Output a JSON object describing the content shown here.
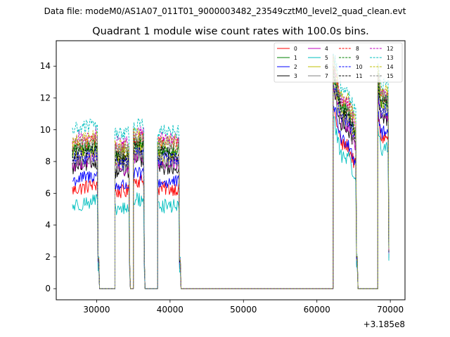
{
  "suptitle": "Data file: modeM0/AS1A07_011T01_9000003482_23549cztM0_level2_quad_clean.evt",
  "chart_data": {
    "type": "line",
    "title": "Quadrant 1 module wise count rates with 100.0s bins.",
    "xlabel": "",
    "ylabel": "",
    "x_offset_label": "+3.185e8",
    "xlim": [
      24500,
      72000
    ],
    "ylim": [
      -0.7,
      15.6
    ],
    "x_ticks": [
      30000,
      40000,
      50000,
      60000,
      70000
    ],
    "x_tick_labels": [
      "30000",
      "40000",
      "50000",
      "60000",
      "70000"
    ],
    "y_ticks": [
      0,
      2,
      4,
      6,
      8,
      10,
      12,
      14
    ],
    "y_tick_labels": [
      "0",
      "2",
      "4",
      "6",
      "8",
      "10",
      "12",
      "14"
    ],
    "legend_position": "top-right",
    "segments": [
      {
        "start": 26700,
        "end": 30300
      },
      {
        "start": 32500,
        "end": 34500
      },
      {
        "start": 35000,
        "end": 36500
      },
      {
        "start": 38300,
        "end": 41400
      },
      {
        "start": 62200,
        "end": 65500
      },
      {
        "start": 68300,
        "end": 69800
      }
    ],
    "series": [
      {
        "name": "0",
        "color": "#ff0000",
        "dash": "solid",
        "levels": [
          6.2,
          6.1,
          6.8,
          6.3,
          9.0,
          9.5
        ]
      },
      {
        "name": "1",
        "color": "#008000",
        "dash": "solid",
        "levels": [
          8.6,
          8.4,
          9.1,
          8.7,
          11.3,
          11.8
        ]
      },
      {
        "name": "2",
        "color": "#0000ff",
        "dash": "solid",
        "levels": [
          6.8,
          6.5,
          7.2,
          6.7,
          9.3,
          9.8
        ]
      },
      {
        "name": "3",
        "color": "#000000",
        "dash": "solid",
        "levels": [
          7.6,
          7.4,
          8.1,
          7.6,
          10.2,
          10.7
        ]
      },
      {
        "name": "4",
        "color": "#bf00bf",
        "dash": "solid",
        "levels": [
          7.8,
          7.5,
          8.3,
          7.8,
          10.3,
          10.9
        ]
      },
      {
        "name": "5",
        "color": "#00bfbf",
        "dash": "solid",
        "levels": [
          5.2,
          5.0,
          5.6,
          5.2,
          8.3,
          8.8
        ]
      },
      {
        "name": "6",
        "color": "#bfbf00",
        "dash": "solid",
        "levels": [
          8.3,
          8.1,
          8.8,
          8.4,
          10.8,
          11.4
        ]
      },
      {
        "name": "7",
        "color": "#808080",
        "dash": "solid",
        "levels": [
          7.9,
          7.7,
          8.4,
          8.0,
          10.4,
          11.0
        ]
      },
      {
        "name": "8",
        "color": "#ff0000",
        "dash": "dashed",
        "levels": [
          9.0,
          8.8,
          9.5,
          9.1,
          11.6,
          12.1
        ]
      },
      {
        "name": "9",
        "color": "#008000",
        "dash": "dashed",
        "levels": [
          8.7,
          8.5,
          9.2,
          8.8,
          11.2,
          11.7
        ]
      },
      {
        "name": "10",
        "color": "#0000ff",
        "dash": "dashed",
        "levels": [
          8.1,
          7.9,
          8.6,
          8.2,
          10.7,
          11.2
        ]
      },
      {
        "name": "11",
        "color": "#000000",
        "dash": "dashed",
        "levels": [
          8.4,
          8.2,
          8.9,
          8.5,
          11.0,
          11.6
        ]
      },
      {
        "name": "12",
        "color": "#bf00bf",
        "dash": "dashed",
        "levels": [
          9.4,
          9.2,
          9.8,
          9.4,
          11.8,
          12.3
        ]
      },
      {
        "name": "13",
        "color": "#00bfbf",
        "dash": "dashed",
        "levels": [
          10.0,
          9.8,
          10.3,
          9.9,
          12.4,
          12.8
        ]
      },
      {
        "name": "14",
        "color": "#bfbf00",
        "dash": "dashed",
        "levels": [
          9.2,
          9.0,
          9.7,
          9.3,
          11.9,
          12.4
        ]
      },
      {
        "name": "15",
        "color": "#808080",
        "dash": "dashed",
        "levels": [
          8.9,
          8.7,
          9.4,
          9.0,
          11.5,
          12.0
        ]
      }
    ]
  }
}
